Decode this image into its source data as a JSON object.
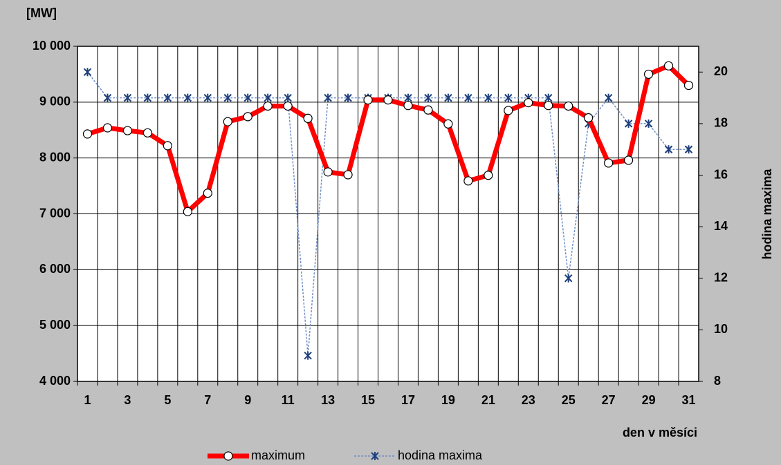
{
  "chart_data": {
    "type": "line",
    "y_unit_label": "[MW]",
    "x_label": "den v měsíci",
    "y2_label": "hodina maxima",
    "categories": [
      "1",
      null,
      "3",
      null,
      "5",
      null,
      "7",
      null,
      "9",
      null,
      "11",
      null,
      "13",
      null,
      "15",
      null,
      "17",
      null,
      "19",
      null,
      "21",
      null,
      "23",
      null,
      "25",
      null,
      "27",
      null,
      "29",
      null,
      "31"
    ],
    "series": [
      {
        "name": "maximum",
        "color": "#ff0000",
        "axis": "y",
        "values": [
          8430,
          8540,
          8490,
          8450,
          8220,
          7040,
          7370,
          8650,
          8740,
          8930,
          8930,
          8710,
          7750,
          7700,
          9040,
          9040,
          8940,
          8860,
          8610,
          7590,
          7690,
          8850,
          8990,
          8940,
          8930,
          8720,
          7910,
          7960,
          9500,
          9650,
          9300
        ]
      },
      {
        "name": "hodina maxima",
        "color": "#1f3f7a",
        "axis": "y2",
        "values": [
          20,
          19,
          19,
          19,
          19,
          19,
          19,
          19,
          19,
          19,
          19,
          9,
          19,
          19,
          19,
          19,
          19,
          19,
          19,
          19,
          19,
          19,
          19,
          19,
          12,
          18,
          19,
          18,
          18,
          17,
          17
        ]
      }
    ],
    "ylim": [
      4000,
      10000
    ],
    "yticks": [
      {
        "value": 4000,
        "label": "4 000"
      },
      {
        "value": 5000,
        "label": "5 000"
      },
      {
        "value": 6000,
        "label": "6 000"
      },
      {
        "value": 7000,
        "label": "7 000"
      },
      {
        "value": 8000,
        "label": "8 000"
      },
      {
        "value": 9000,
        "label": "9 000"
      },
      {
        "value": 10000,
        "label": "10 000"
      }
    ],
    "y2lim": [
      8,
      21
    ],
    "y2ticks": [
      8,
      10,
      12,
      14,
      16,
      18,
      20
    ],
    "grid": true,
    "legend": "bottom"
  }
}
